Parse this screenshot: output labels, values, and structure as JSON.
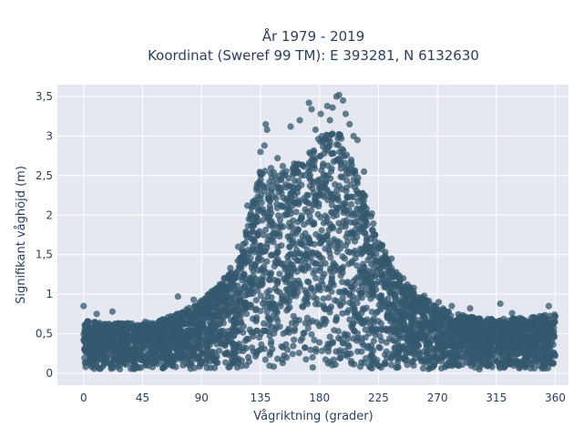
{
  "chart_data": {
    "type": "scatter",
    "title": "År 1979 - 2019",
    "subtitle": "Koordinat (Sweref 99 TM): E 393281, N 6132630",
    "xlabel": "Vågriktning (grader)",
    "ylabel": "Signifikant våghöjd (m)",
    "xlim": [
      -20,
      370
    ],
    "ylim": [
      -0.15,
      3.65
    ],
    "xticks": [
      0,
      45,
      90,
      135,
      180,
      225,
      270,
      315,
      360
    ],
    "xtick_labels": [
      "0",
      "45",
      "90",
      "135",
      "180",
      "225",
      "270",
      "315",
      "360"
    ],
    "yticks": [
      0,
      0.5,
      1,
      1.5,
      2,
      2.5,
      3,
      3.5
    ],
    "ytick_labels": [
      "0",
      "0,5",
      "1",
      "1,5",
      "2",
      "2,5",
      "3",
      "3,5"
    ],
    "grid": true,
    "colors": {
      "marker": "#34586e",
      "plot_bg": "#e5e8f0",
      "grid": "#ffffff",
      "text": "#2a3f5f"
    },
    "envelope": {
      "direction_deg": [
        0,
        15,
        30,
        45,
        60,
        75,
        90,
        105,
        120,
        135,
        150,
        165,
        180,
        195,
        210,
        225,
        240,
        255,
        270,
        285,
        300,
        315,
        330,
        345,
        360
      ],
      "max_height_m": [
        0.7,
        0.62,
        0.65,
        0.62,
        0.68,
        0.78,
        0.92,
        1.15,
        1.5,
        2.65,
        2.55,
        2.7,
        3.0,
        3.05,
        2.5,
        1.7,
        1.25,
        1.0,
        0.85,
        0.75,
        0.7,
        0.68,
        0.7,
        0.72,
        0.75
      ]
    },
    "outliers": [
      {
        "x": 0,
        "y": 0.85
      },
      {
        "x": 3,
        "y": 0.65
      },
      {
        "x": 10,
        "y": 0.75
      },
      {
        "x": 22,
        "y": 0.78
      },
      {
        "x": 47,
        "y": 0.65
      },
      {
        "x": 72,
        "y": 0.97
      },
      {
        "x": 84,
        "y": 0.93
      },
      {
        "x": 101,
        "y": 0.98
      },
      {
        "x": 112,
        "y": 1.33
      },
      {
        "x": 118,
        "y": 1.6
      },
      {
        "x": 125,
        "y": 2.12
      },
      {
        "x": 132,
        "y": 2.35
      },
      {
        "x": 135,
        "y": 2.8
      },
      {
        "x": 138,
        "y": 2.88
      },
      {
        "x": 139,
        "y": 3.15
      },
      {
        "x": 140,
        "y": 3.08
      },
      {
        "x": 148,
        "y": 2.72
      },
      {
        "x": 152,
        "y": 2.62
      },
      {
        "x": 158,
        "y": 3.12
      },
      {
        "x": 160,
        "y": 2.6
      },
      {
        "x": 165,
        "y": 3.2
      },
      {
        "x": 172,
        "y": 3.42
      },
      {
        "x": 174,
        "y": 3.34
      },
      {
        "x": 177,
        "y": 3.08
      },
      {
        "x": 181,
        "y": 3.28
      },
      {
        "x": 183,
        "y": 2.95
      },
      {
        "x": 186,
        "y": 3.38
      },
      {
        "x": 188,
        "y": 3.2
      },
      {
        "x": 190,
        "y": 3.36
      },
      {
        "x": 193,
        "y": 3.5
      },
      {
        "x": 195,
        "y": 3.52
      },
      {
        "x": 198,
        "y": 3.45
      },
      {
        "x": 200,
        "y": 3.28
      },
      {
        "x": 203,
        "y": 3.15
      },
      {
        "x": 206,
        "y": 3.0
      },
      {
        "x": 209,
        "y": 2.95
      },
      {
        "x": 214,
        "y": 2.55
      },
      {
        "x": 220,
        "y": 2.02
      },
      {
        "x": 228,
        "y": 1.62
      },
      {
        "x": 235,
        "y": 1.45
      },
      {
        "x": 244,
        "y": 1.2
      },
      {
        "x": 252,
        "y": 1.08
      },
      {
        "x": 260,
        "y": 0.98
      },
      {
        "x": 271,
        "y": 0.9
      },
      {
        "x": 281,
        "y": 0.85
      },
      {
        "x": 295,
        "y": 0.82
      },
      {
        "x": 318,
        "y": 0.88
      },
      {
        "x": 327,
        "y": 0.76
      },
      {
        "x": 347,
        "y": 0.66
      },
      {
        "x": 355,
        "y": 0.85
      },
      {
        "x": 358,
        "y": 0.62
      },
      {
        "x": 360,
        "y": 0.72
      }
    ]
  }
}
